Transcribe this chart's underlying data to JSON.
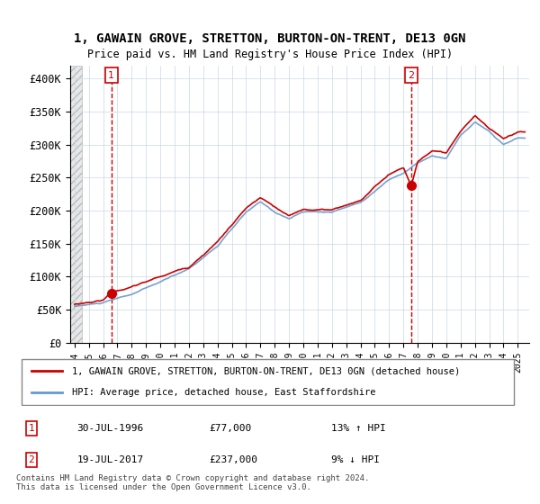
{
  "title1": "1, GAWAIN GROVE, STRETTON, BURTON-ON-TRENT, DE13 0GN",
  "title2": "Price paid vs. HM Land Registry's House Price Index (HPI)",
  "legend_line1": "1, GAWAIN GROVE, STRETTON, BURTON-ON-TRENT, DE13 0GN (detached house)",
  "legend_line2": "HPI: Average price, detached house, East Staffordshire",
  "annotation1_label": "1",
  "annotation1_date": "30-JUL-1996",
  "annotation1_price": "£77,000",
  "annotation1_hpi": "13% ↑ HPI",
  "annotation2_label": "2",
  "annotation2_date": "19-JUL-2017",
  "annotation2_price": "£237,000",
  "annotation2_hpi": "9% ↓ HPI",
  "footer": "Contains HM Land Registry data © Crown copyright and database right 2024.\nThis data is licensed under the Open Government Licence v3.0.",
  "sale1_year": 1996.58,
  "sale1_value": 77000,
  "sale2_year": 2017.55,
  "sale2_value": 237000,
  "property_color": "#cc0000",
  "hpi_color": "#6699cc",
  "hatch_color": "#cccccc",
  "ylim_max": 420000,
  "ylim_min": 0
}
